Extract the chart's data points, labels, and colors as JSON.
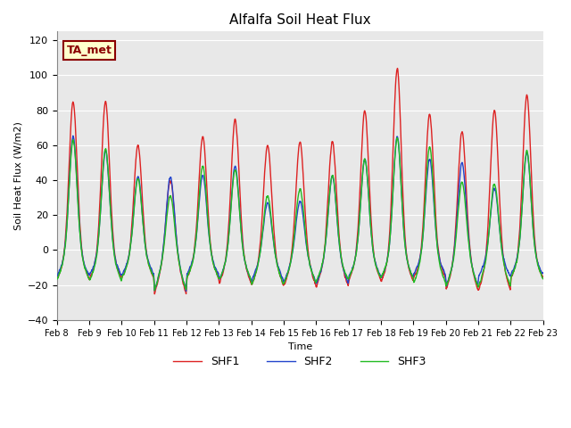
{
  "title": "Alfalfa Soil Heat Flux",
  "ylabel": "Soil Heat Flux (W/m2)",
  "xlabel": "Time",
  "ylim": [
    -40,
    125
  ],
  "yticks": [
    -40,
    -20,
    0,
    20,
    40,
    60,
    80,
    100,
    120
  ],
  "background_color": "#e8e8e8",
  "fig_background": "#ffffff",
  "annotation_text": "TA_met",
  "annotation_color": "#8B0000",
  "annotation_bg": "#ffffcc",
  "legend_entries": [
    "SHF1",
    "SHF2",
    "SHF3"
  ],
  "line_colors": [
    "#dd2222",
    "#2244cc",
    "#22bb22"
  ],
  "line_width": 1.0,
  "n_days": 15,
  "points_per_day": 288,
  "start_day": 8,
  "day_peaks1": [
    85,
    85,
    60,
    40,
    65,
    75,
    60,
    62,
    62,
    80,
    104,
    78,
    68,
    80,
    89
  ],
  "day_peaks2": [
    65,
    57,
    42,
    42,
    43,
    48,
    27,
    28,
    42,
    52,
    65,
    52,
    50,
    35,
    56
  ],
  "day_peaks3": [
    63,
    58,
    41,
    31,
    48,
    46,
    31,
    35,
    43,
    52,
    64,
    59,
    39,
    38,
    57
  ],
  "night_lows1": [
    -26,
    -26,
    -25,
    -40,
    -25,
    -30,
    -32,
    -32,
    -33,
    -27,
    -28,
    -25,
    -36,
    -37,
    -25
  ],
  "night_lows2": [
    -23,
    -23,
    -22,
    -37,
    -22,
    -27,
    -28,
    -29,
    -30,
    -24,
    -25,
    -22,
    -33,
    -24,
    -22
  ],
  "night_lows3": [
    -26,
    -28,
    -25,
    -37,
    -25,
    -27,
    -32,
    -30,
    -28,
    -25,
    -25,
    -30,
    -33,
    -33,
    -25
  ]
}
